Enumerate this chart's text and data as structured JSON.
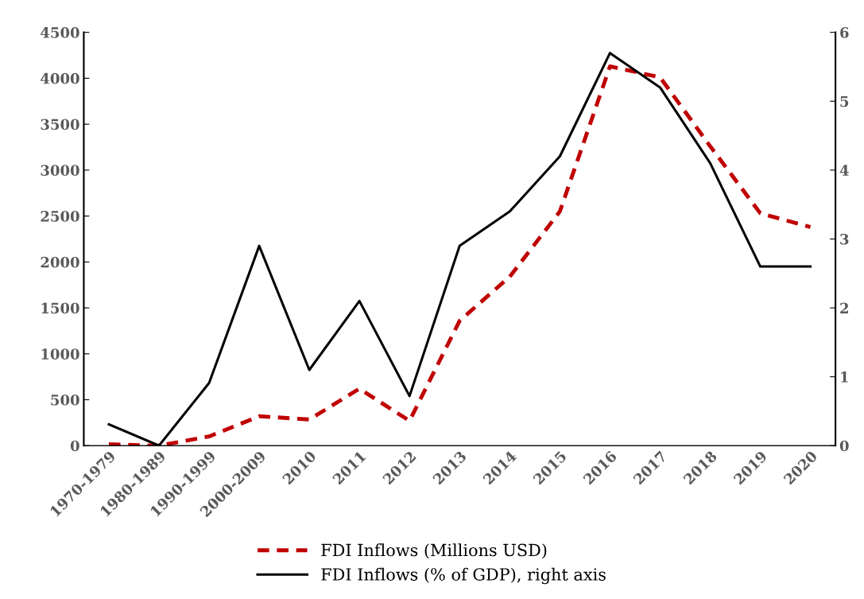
{
  "chart_data": {
    "type": "line",
    "categories": [
      "1970-1979",
      "1980-1989",
      "1990-1999",
      "2000-2009",
      "2010",
      "2011",
      "2012",
      "2013",
      "2014",
      "2015",
      "2016",
      "2017",
      "2018",
      "2019",
      "2020"
    ],
    "series": [
      {
        "name": "FDI Inflows (Millions USD)",
        "color": "#c00000",
        "line_style": "dashed",
        "values": [
          15,
          0,
          100,
          320,
          285,
          620,
          270,
          1360,
          1840,
          2550,
          4130,
          4010,
          3260,
          2530,
          2380
        ]
      },
      {
        "name": "FDI Inflows (% of GDP), right axis",
        "color": "#000000",
        "line_style": "solid",
        "axis": "y2",
        "values": [
          0.31,
          0,
          0.91,
          2.9,
          1.1,
          2.1,
          0.72,
          2.9,
          3.4,
          4.2,
          5.7,
          5.2,
          4.1,
          2.6,
          2.6
        ]
      }
    ],
    "ylim": [
      0,
      4500
    ],
    "yticks": [
      0,
      500,
      1000,
      1500,
      2000,
      2500,
      3000,
      3500,
      4000,
      4500
    ],
    "y2lim": [
      0,
      6
    ],
    "y2ticks": [
      0,
      1,
      2,
      3,
      4,
      5,
      6
    ],
    "grid": false,
    "legend": "bottom",
    "marker": "none"
  }
}
